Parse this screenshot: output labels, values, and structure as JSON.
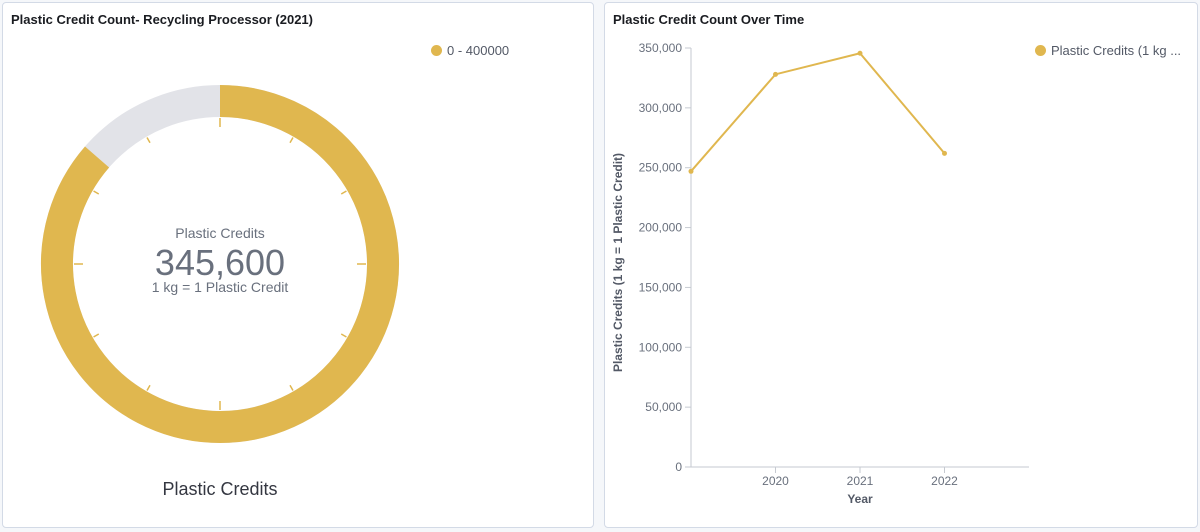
{
  "colors": {
    "accent": "#e0b74f",
    "track": "#e2e3e8",
    "text_dark": "#69707d",
    "axis": "#c6cad1"
  },
  "gauge_panel": {
    "title": "Plastic Credit Count- Recycling Processor (2021)",
    "legend_label": "0 - 400000",
    "center_label": "Plastic Credits",
    "center_value": "345,600",
    "center_sublabel": "1 kg = 1 Plastic Credit",
    "bottom_label": "Plastic Credits"
  },
  "line_panel": {
    "title": "Plastic Credit Count Over Time",
    "legend_label": "Plastic Credits (1 kg ..."
  },
  "chart_data": [
    {
      "type": "gauge",
      "title": "Plastic Credit Count- Recycling Processor (2021)",
      "value": 345600,
      "range": [
        0,
        400000
      ],
      "ticks": 12,
      "legend": [
        "0 - 400000"
      ],
      "label": "Plastic Credits",
      "sublabel": "1 kg = 1 Plastic Credit"
    },
    {
      "type": "line",
      "title": "Plastic Credit Count Over Time",
      "x": [
        2019,
        2020,
        2021,
        2022
      ],
      "xlim": [
        2019,
        2023
      ],
      "xticks": [
        2020,
        2021,
        2022
      ],
      "series": [
        {
          "name": "Plastic Credits (1 kg ...",
          "values": [
            247000,
            328000,
            345600,
            262000
          ]
        }
      ],
      "ylim": [
        0,
        350000
      ],
      "yticks": [
        0,
        50000,
        100000,
        150000,
        200000,
        250000,
        300000,
        350000
      ],
      "ytick_labels": [
        "0",
        "50,000",
        "100,000",
        "150,000",
        "200,000",
        "250,000",
        "300,000",
        "350,000"
      ],
      "xlabel": "Year",
      "ylabel": "Plastic Credits (1 kg = 1 Plastic Credit)",
      "legend": "top-right"
    }
  ]
}
